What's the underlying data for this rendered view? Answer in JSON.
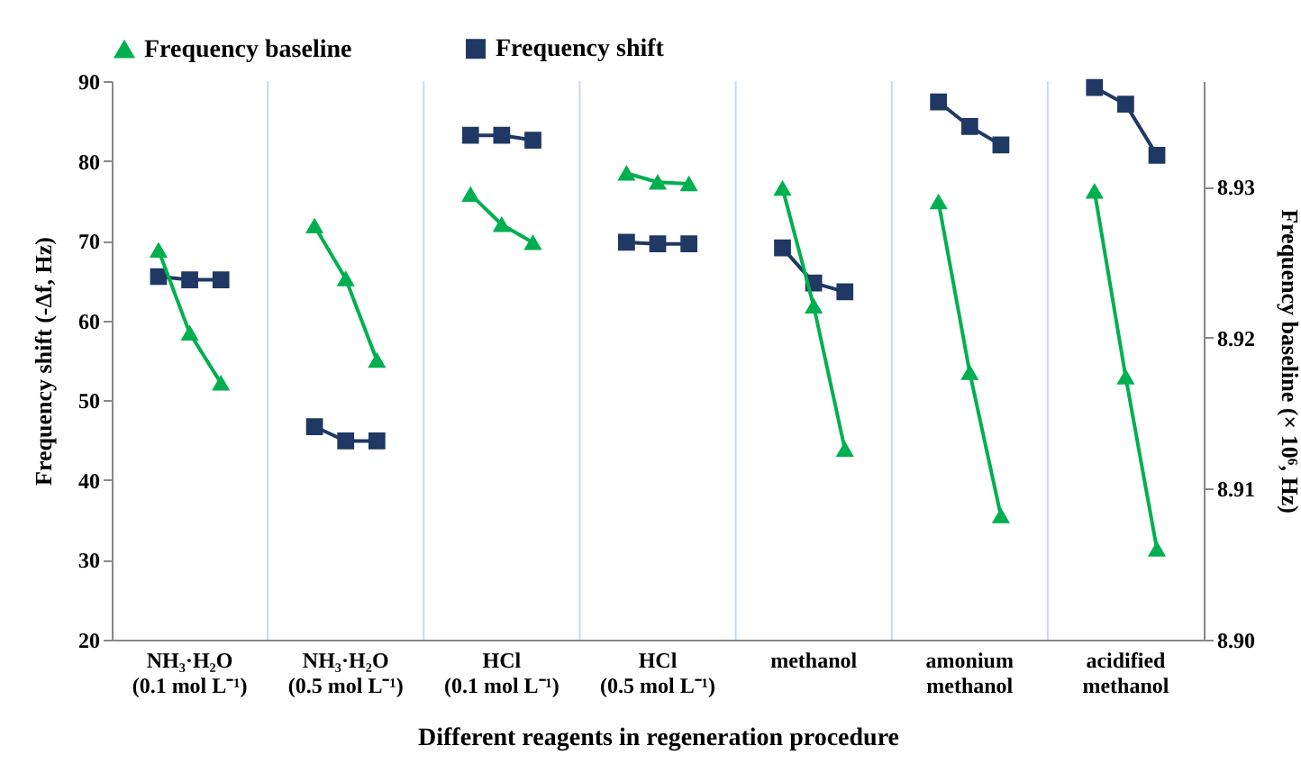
{
  "chart_data": {
    "type": "line",
    "categories": [
      null,
      null,
      "NH₃·H₂O\n(0.1 mol L⁻¹)",
      null,
      null,
      null,
      null,
      "NH₃·H₂O\n(0.5 mol L⁻¹)",
      null,
      null,
      null,
      null,
      "HCl\n(0.1 mol L⁻¹)",
      null,
      null,
      null,
      null,
      "HCl\n(0.5 mol L⁻¹)",
      null,
      null,
      null,
      null,
      "methanol",
      null,
      null,
      null,
      null,
      "amonium\nmethanol",
      null,
      null,
      null,
      null,
      "acidified\nmethanol",
      null,
      null
    ],
    "series": [
      {
        "name": "Frequency baseline",
        "color": "#00b050",
        "marker": "triangle",
        "axis": "y2",
        "values": [
          null,
          8.9258,
          8.9203,
          8.917,
          null,
          null,
          8.9274,
          8.9239,
          8.9185,
          null,
          null,
          8.9295,
          8.9275,
          8.9263,
          null,
          null,
          8.9309,
          8.9303,
          8.9302,
          null,
          null,
          8.9299,
          8.9221,
          8.9126,
          null,
          null,
          8.929,
          8.9177,
          8.9082,
          null,
          null,
          8.9297,
          8.9174,
          8.906,
          null
        ]
      },
      {
        "name": "Frequency shift",
        "color": "#1f3864",
        "marker": "square",
        "values": [
          null,
          65.5,
          65.1,
          65.1,
          null,
          null,
          46.7,
          44.9,
          44.9,
          null,
          null,
          83.2,
          83.2,
          82.6,
          null,
          null,
          69.8,
          69.6,
          69.6,
          null,
          null,
          69.1,
          64.7,
          63.6,
          null,
          null,
          87.4,
          84.3,
          82.0,
          null,
          null,
          89.2,
          87.1,
          80.7,
          null
        ]
      }
    ],
    "xlabel": "Different reagents in regeneration procedure",
    "ylabel": "Frequency shift  (-Δf, Hz)",
    "y2label": "Frequency baseline  (× 10⁶, Hz)",
    "ylim": [
      20,
      90
    ],
    "yticks": [
      20,
      30,
      40,
      50,
      60,
      70,
      80,
      90
    ],
    "y2lim": [
      8.9,
      8.937
    ],
    "y2ticks": [
      {
        "value": 8.9,
        "label": "8.90"
      },
      {
        "value": 8.91,
        "label": "8.91"
      },
      {
        "value": 8.92,
        "label": "8.92"
      },
      {
        "value": 8.93,
        "label": "8.93"
      }
    ],
    "line_style": "solid",
    "grid": "x",
    "legend": "top"
  }
}
